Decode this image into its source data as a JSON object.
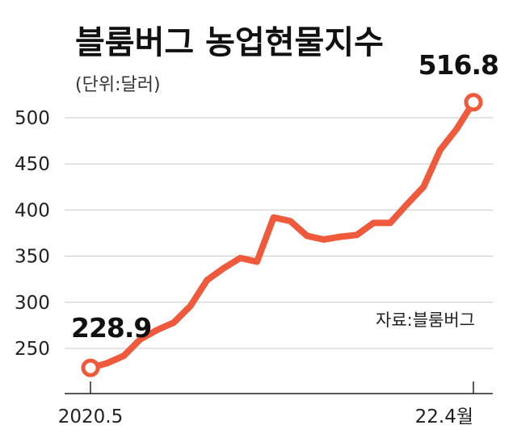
{
  "chart_data": {
    "type": "line",
    "title": "블룸버그 농업현물지수",
    "unit_label": "(단위:달러)",
    "source": "자료:블룸버그",
    "y_ticks": [
      500,
      450,
      400,
      350,
      300,
      250
    ],
    "x_tick_labels": [
      "2020.5",
      "22.4월"
    ],
    "ylim": [
      200,
      540
    ],
    "series": [
      {
        "name": "블룸버그 농업현물지수",
        "color": "#ef5a3c",
        "values": [
          228.9,
          234,
          242,
          260,
          270,
          278,
          296,
          324,
          337,
          348,
          344,
          392,
          388,
          372,
          368,
          371,
          373,
          386,
          386,
          406,
          425,
          465,
          488,
          516.8
        ]
      }
    ],
    "annotations": [
      {
        "label": "228.9",
        "index": 0
      },
      {
        "label": "516.8",
        "index": 23
      }
    ]
  }
}
